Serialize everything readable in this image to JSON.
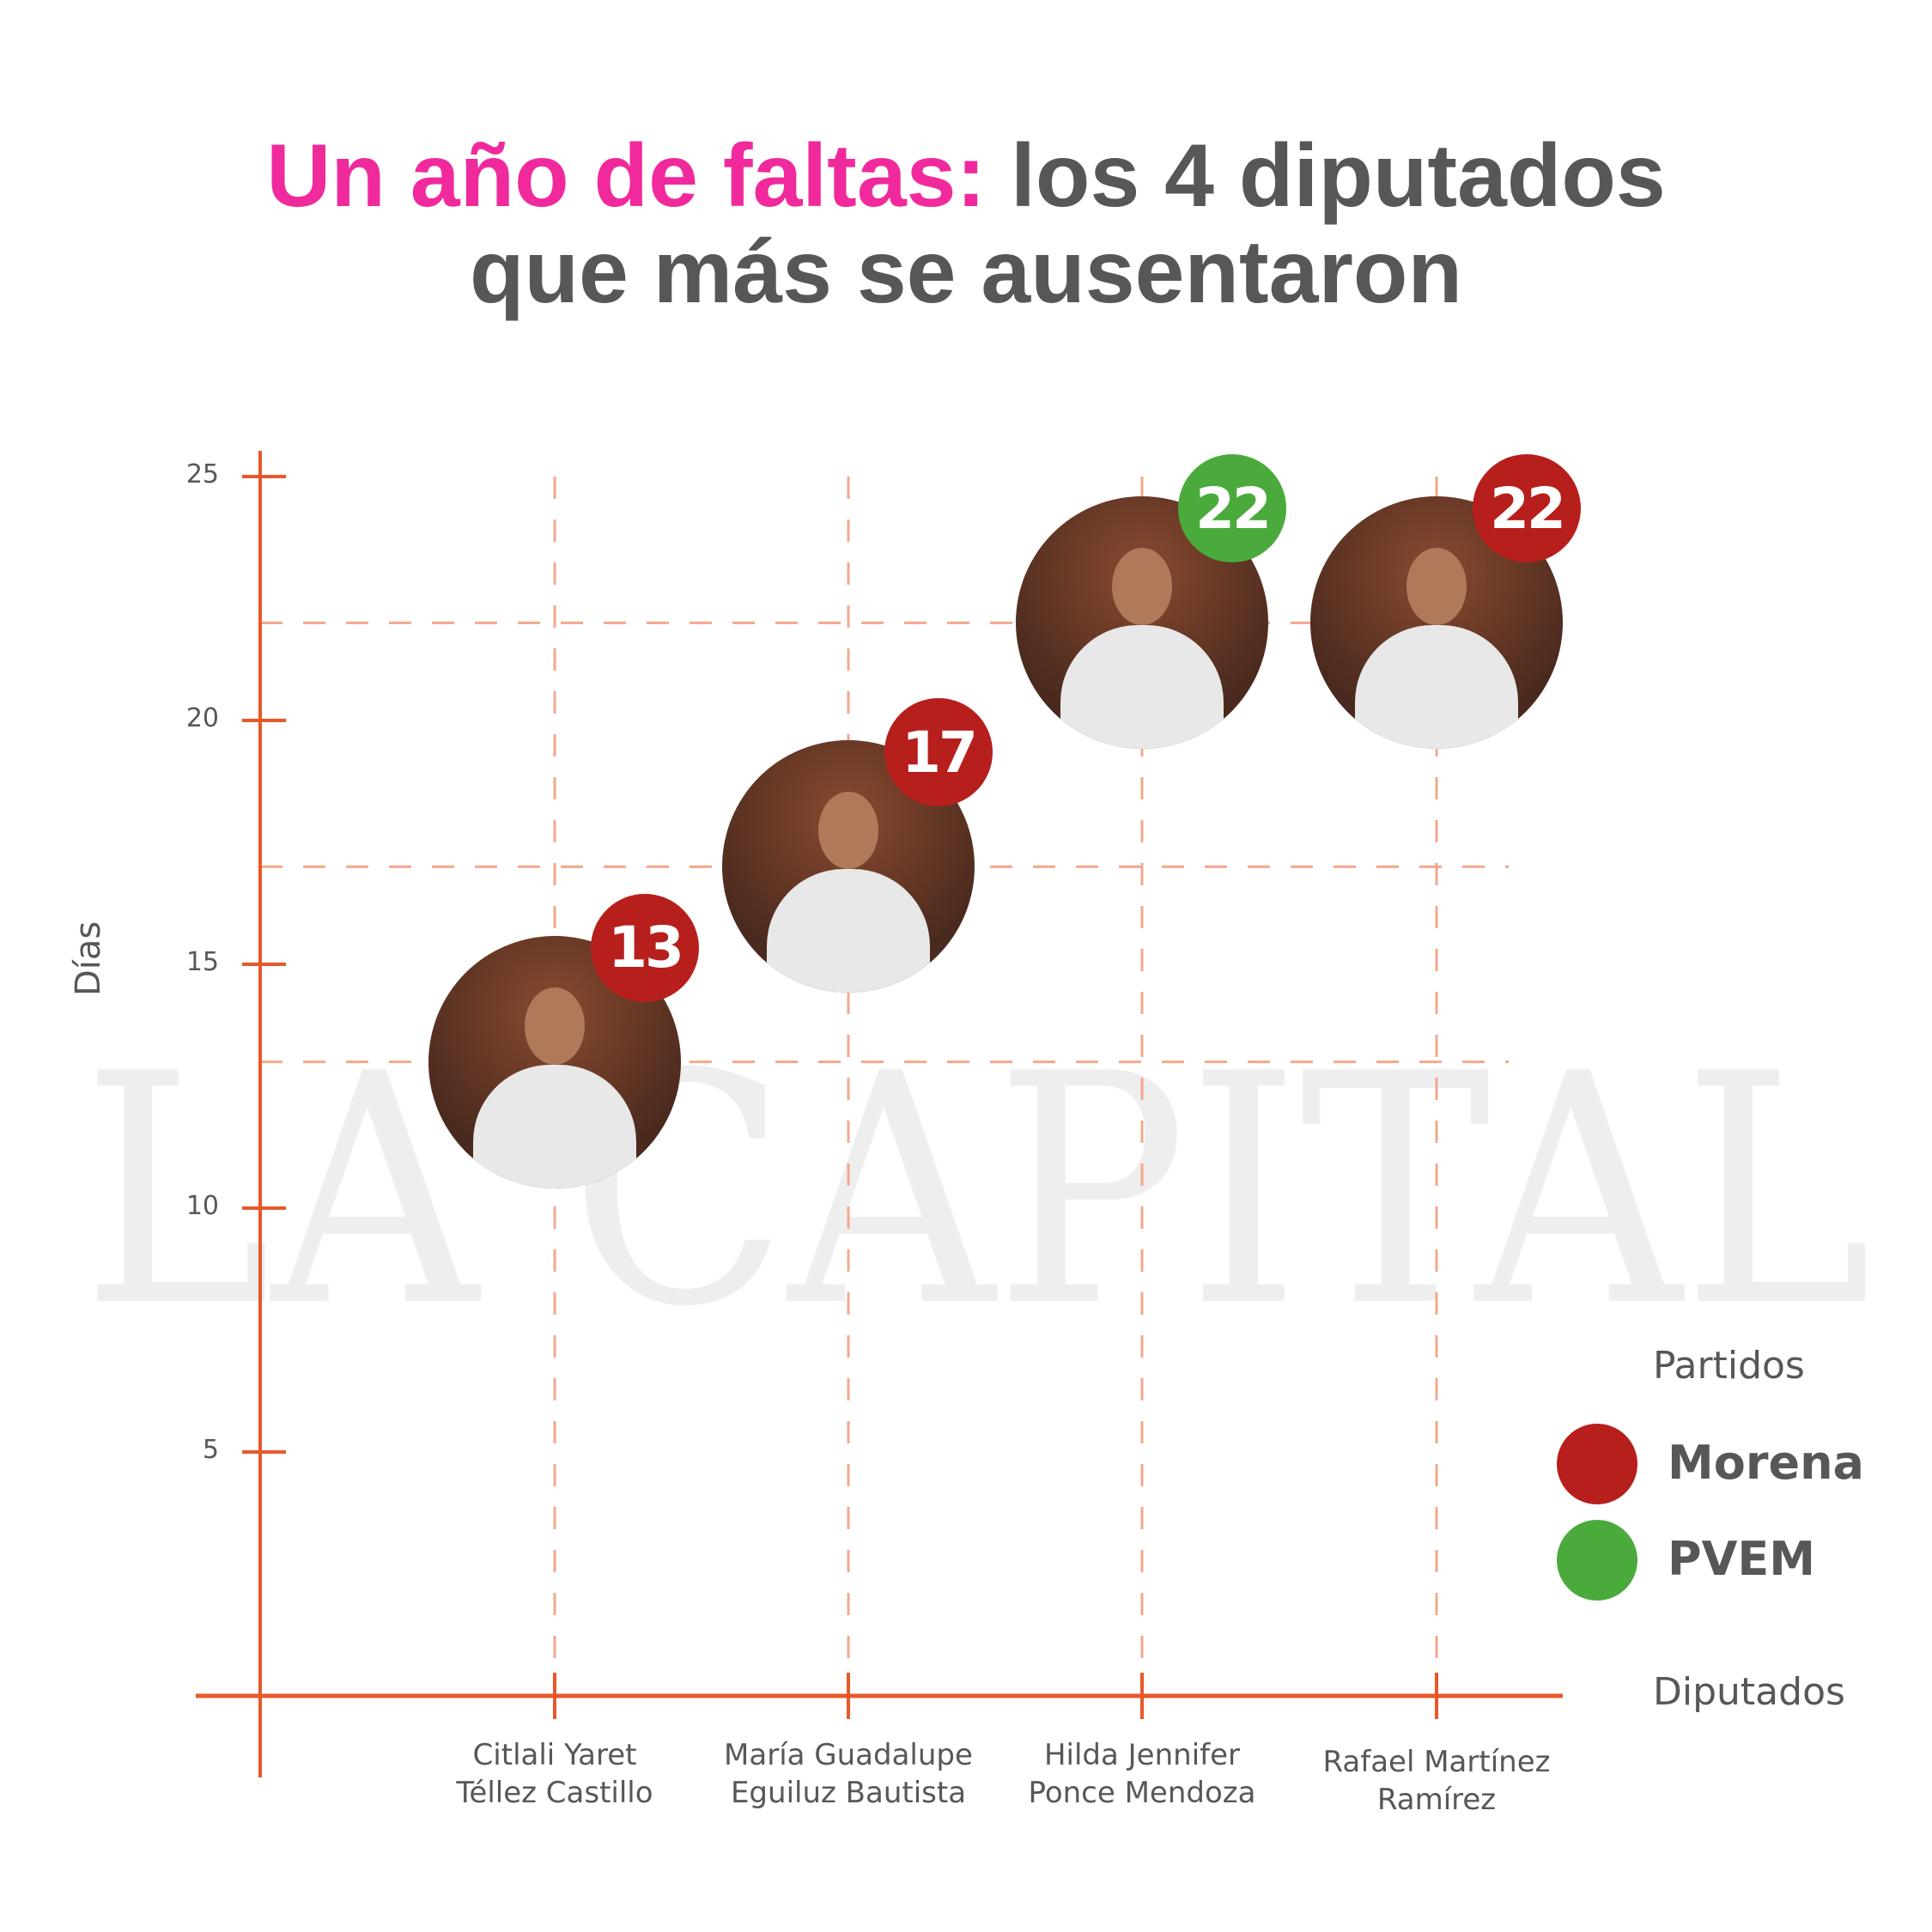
{
  "title": {
    "highlight": "Un año de faltas:",
    "line1_rest": " los 4 diputados",
    "line2": "que más se ausentaron"
  },
  "watermark": "LA CAPITAL",
  "colors": {
    "title_highlight": "#F02A9C",
    "text": "#575757",
    "axis": "#E8582A",
    "grid": "#F2A88C",
    "Morena": "#B71F1C",
    "PVEM": "#4AAA3C"
  },
  "chart_data": {
    "type": "scatter",
    "xlabel": "Diputados",
    "ylabel": "Días",
    "ylim": [
      0,
      25
    ],
    "yticks": [
      "5",
      "10",
      "15",
      "20",
      "25"
    ],
    "grid": "dashed",
    "legend_placement": "right",
    "categories": [
      [
        "Citlali Yaret",
        "Téllez Castillo"
      ],
      [
        "María Guadalupe",
        "Eguiluz Bautista"
      ],
      [
        "Hilda Jennifer",
        "Ponce Mendoza"
      ],
      [
        "Rafael Martínez",
        "Ramírez"
      ]
    ],
    "points": [
      {
        "label": "13",
        "value": 13,
        "party": "Morena"
      },
      {
        "label": "17",
        "value": 17,
        "party": "Morena"
      },
      {
        "label": "22",
        "value": 22,
        "party": "PVEM"
      },
      {
        "label": "22",
        "value": 22,
        "party": "Morena"
      }
    ],
    "legend": {
      "title": "Partidos",
      "items": [
        {
          "name": "Morena",
          "color": "#B71F1C"
        },
        {
          "name": "PVEM",
          "color": "#4AAA3C"
        }
      ]
    }
  }
}
